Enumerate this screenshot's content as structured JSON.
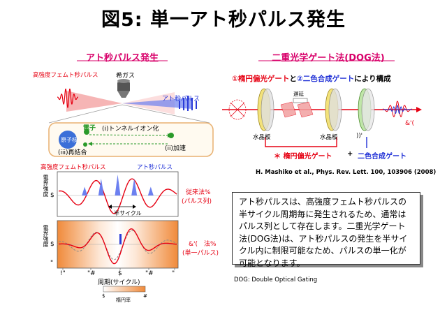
{
  "title": "図5: 単一アト秒パルス発生",
  "left": {
    "section_title": "アト秒パルス発生",
    "top_diagram": {
      "label_input": "高強度フェムト秒パルス",
      "label_gas": "希ガス",
      "label_output": "アト秒パルス",
      "electron": "電子",
      "nucleus": "原子核",
      "step1": "(i)トンネルイオン化",
      "step2": "(ii)加速",
      "step3": "(iii)再結合"
    },
    "mid_chart": {
      "legend_red": "高強度フェムト秒パルス",
      "legend_blue": "アト秒パルス",
      "ylabel": "電界強度",
      "y_tick": "$",
      "annotation": "半サイクル",
      "side_label_1": "従来法%",
      "side_label_2": "(パルス列)"
    },
    "bottom_chart": {
      "ylabel": "電界強度",
      "y_tick": "$",
      "y_tick_neg": "\"",
      "side_label_1": "&'(　法%",
      "side_label_2": "(単一パルス)",
      "xlabel": "周期(サイクル)",
      "x_ticks": [
        "!\"",
        "\"#",
        "$",
        "\"#",
        "\""
      ],
      "colorbar_label": "楕円率",
      "colorbar_ticks": [
        "$",
        "#"
      ]
    }
  },
  "right": {
    "section_title": "二重光学ゲート法(DOG法)",
    "heading_1": "①楕円偏光ゲート",
    "heading_and": "と",
    "heading_2": "②二色合成ゲート",
    "heading_tail": "により構成",
    "delay_label": "遅延",
    "plate_1": "水晶板",
    "plate_2": "水晶板",
    "plate_3": "))'",
    "output_label": "&'(",
    "gate_1": "＊ 楕円偏光ゲート",
    "plus": "+",
    "gate_2": "二色合成ゲート"
  },
  "reference": "H. Mashiko et al., Phys. Rev. Lett. 100, 103906 (2008)",
  "body_text": "アト秒パルスは、高強度フェムト秒パルスの半サイクル周期毎に発生されるため、通常はパルス列として存在します。二重光学ゲート法(DOG法)は、アト秒パルスの発生を半サイクル内に制限可能なため、パルスの単一化が可能となります。",
  "footnote": "DOG: Double Optical Gating",
  "colors": {
    "accent": "#d8006a",
    "red": "#e60012",
    "blue": "#1e2fd6",
    "green": "#2a9a2a",
    "orange": "#f08a3a"
  }
}
